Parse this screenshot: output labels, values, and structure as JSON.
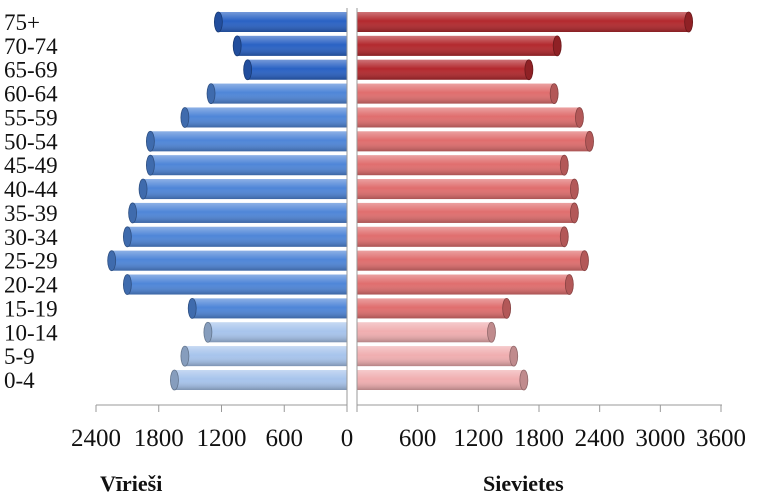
{
  "chart_data": {
    "type": "bar",
    "orientation": "horizontal-population-pyramid",
    "categories": [
      "0-4",
      "5-9",
      "10-14",
      "15-19",
      "20-24",
      "25-29",
      "30-34",
      "35-39",
      "40-44",
      "45-49",
      "50-54",
      "55-59",
      "60-64",
      "65-69",
      "70-74",
      "75+"
    ],
    "series": [
      {
        "name": "Vīrieši",
        "side": "left",
        "values": [
          1650,
          1550,
          1330,
          1480,
          2100,
          2250,
          2100,
          2050,
          1950,
          1880,
          1880,
          1550,
          1300,
          950,
          1050,
          1230
        ],
        "colors": [
          "#a7c4ec",
          "#a7c4ec",
          "#a7c4ec",
          "#4f86d8",
          "#4f86d8",
          "#4f86d8",
          "#4f86d8",
          "#4f86d8",
          "#4f86d8",
          "#4f86d8",
          "#4f86d8",
          "#4f86d8",
          "#4f86d8",
          "#2a62c4",
          "#2a62c4",
          "#2a62c4"
        ]
      },
      {
        "name": "Sievietes",
        "side": "right",
        "values": [
          1650,
          1550,
          1330,
          1480,
          2100,
          2250,
          2050,
          2150,
          2150,
          2050,
          2300,
          2200,
          1950,
          1700,
          1980,
          3280
        ],
        "colors": [
          "#f0aeb0",
          "#f0aeb0",
          "#f0aeb0",
          "#e06e6e",
          "#e06e6e",
          "#e06e6e",
          "#e06e6e",
          "#e06e6e",
          "#e06e6e",
          "#e06e6e",
          "#e06e6e",
          "#e06e6e",
          "#e06e6e",
          "#b3292e",
          "#b3292e",
          "#b3292e"
        ]
      }
    ],
    "left_axis": {
      "ticks": [
        "2400",
        "1800",
        "1200",
        "600",
        "0"
      ],
      "range": [
        2400,
        0
      ]
    },
    "right_axis": {
      "ticks": [
        "600",
        "1200",
        "1800",
        "2400",
        "3000",
        "3600"
      ],
      "range": [
        0,
        3600
      ]
    },
    "left_title": "Vīrieši",
    "right_title": "Sievietes",
    "grid": false,
    "legend": "none"
  }
}
